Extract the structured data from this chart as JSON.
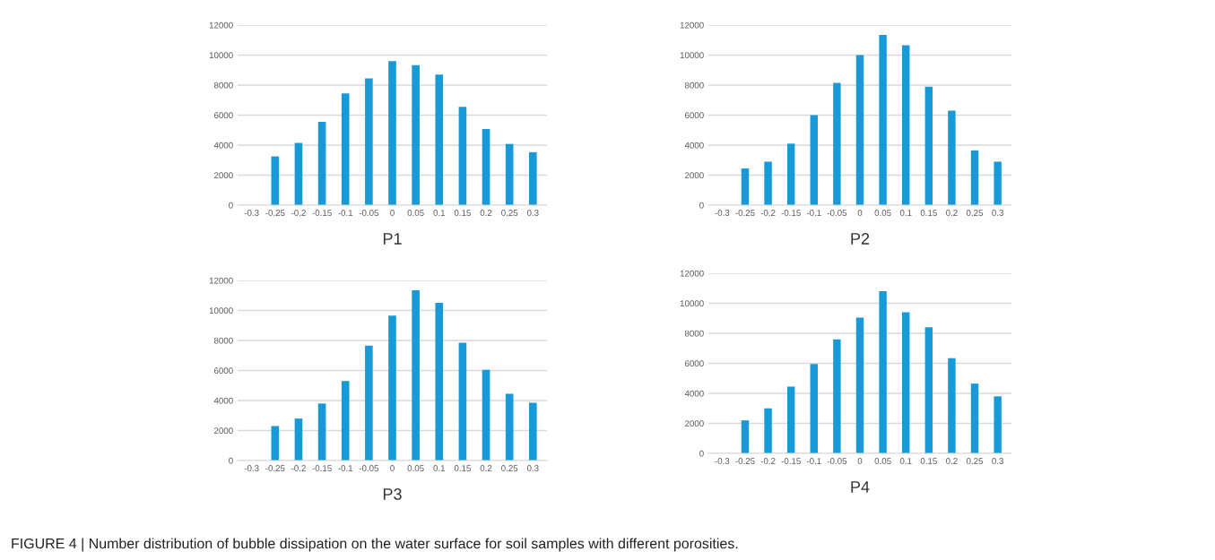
{
  "chart_data": [
    {
      "type": "bar",
      "xlabel": "P1",
      "categories": [
        "-0.3",
        "-0.25",
        "-0.2",
        "-0.15",
        "-0.1",
        "-0.05",
        "0",
        "0.05",
        "0.1",
        "0.15",
        "0.2",
        "0.25",
        "0.3"
      ],
      "values": [
        0,
        3250,
        4150,
        5550,
        7450,
        8450,
        9600,
        9330,
        8700,
        6550,
        5080,
        4080,
        3530
      ],
      "color": "#189ad8",
      "ylim": [
        0,
        12000
      ],
      "yticks": [
        0,
        2000,
        4000,
        6000,
        8000,
        10000,
        12000
      ],
      "grid": "y"
    },
    {
      "type": "bar",
      "xlabel": "P2",
      "categories": [
        "-0.3",
        "-0.25",
        "-0.2",
        "-0.15",
        "-0.1",
        "-0.05",
        "0",
        "0.05",
        "0.1",
        "0.15",
        "0.2",
        "0.25",
        "0.3"
      ],
      "values": [
        0,
        2450,
        2900,
        4100,
        6000,
        8150,
        10000,
        11350,
        10650,
        7900,
        6300,
        3650,
        2900
      ],
      "color": "#189ad8",
      "ylim": [
        0,
        12000
      ],
      "yticks": [
        0,
        2000,
        4000,
        6000,
        8000,
        10000,
        12000
      ],
      "grid": "y"
    },
    {
      "type": "bar",
      "xlabel": "P3",
      "categories": [
        "-0.3",
        "-0.25",
        "-0.2",
        "-0.15",
        "-0.1",
        "-0.05",
        "0",
        "0.05",
        "0.1",
        "0.15",
        "0.2",
        "0.25",
        "0.3"
      ],
      "values": [
        0,
        2300,
        2800,
        3800,
        5300,
        7650,
        9650,
        11350,
        10500,
        7850,
        6050,
        4450,
        3850
      ],
      "color": "#189ad8",
      "ylim": [
        0,
        12000
      ],
      "yticks": [
        0,
        2000,
        4000,
        6000,
        8000,
        10000,
        12000
      ],
      "grid": "y"
    },
    {
      "type": "bar",
      "xlabel": "P4",
      "categories": [
        "-0.3",
        "-0.25",
        "-0.2",
        "-0.15",
        "-0.1",
        "-0.05",
        "0",
        "0.05",
        "0.1",
        "0.15",
        "0.2",
        "0.25",
        "0.3"
      ],
      "values": [
        0,
        2200,
        3000,
        4450,
        5950,
        7600,
        9050,
        10800,
        9400,
        8400,
        6350,
        4650,
        3800
      ],
      "color": "#189ad8",
      "ylim": [
        0,
        12000
      ],
      "yticks": [
        0,
        2000,
        4000,
        6000,
        8000,
        10000,
        12000
      ],
      "grid": "y",
      "annotations": [
        "FIGURE 4 | Number distribution of bubble dissipation on the water surface for soil samples with different porosities."
      ]
    }
  ]
}
